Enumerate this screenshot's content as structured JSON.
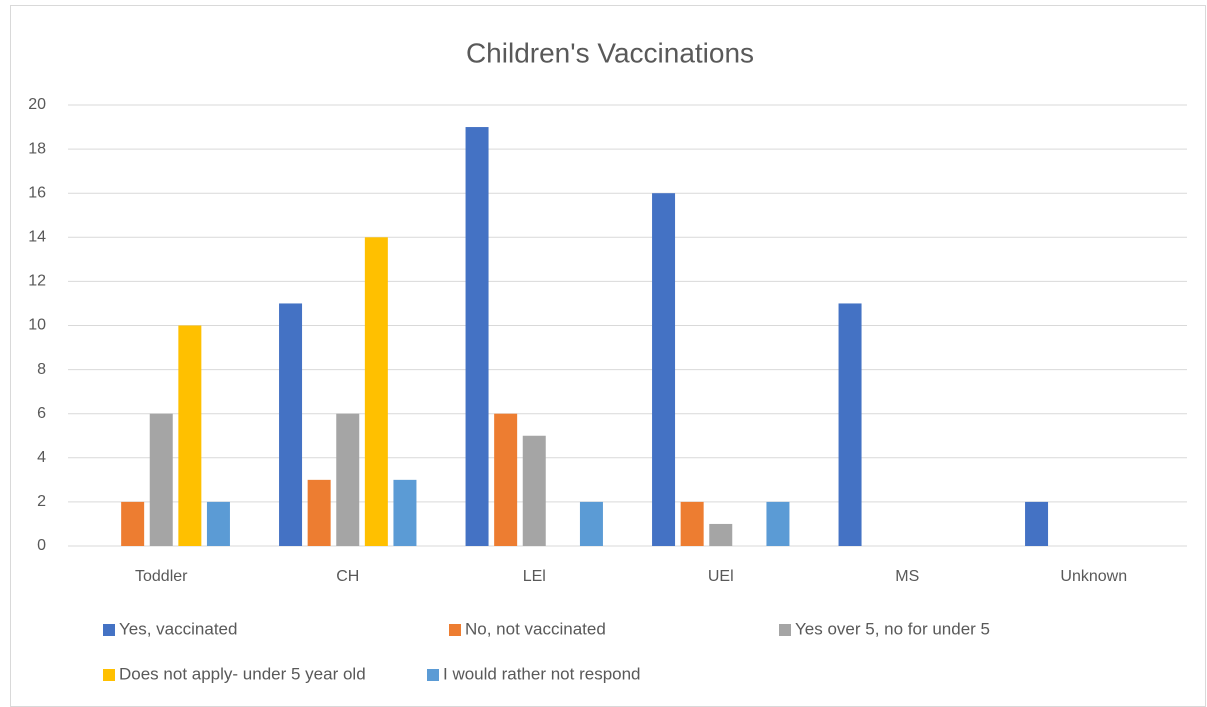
{
  "chart_data": {
    "type": "bar",
    "title": "Children's Vaccinations",
    "categories": [
      "Toddler",
      "CH",
      "LEl",
      "UEl",
      "MS",
      "Unknown"
    ],
    "series": [
      {
        "name": "Yes, vaccinated",
        "color": "#4472c4",
        "values": [
          0,
          11,
          19,
          16,
          11,
          2
        ]
      },
      {
        "name": "No, not vaccinated",
        "color": "#ed7d31",
        "values": [
          2,
          3,
          6,
          2,
          0,
          0
        ]
      },
      {
        "name": "Yes over 5, no for under 5",
        "color": "#a5a5a5",
        "values": [
          6,
          6,
          5,
          1,
          0,
          0
        ]
      },
      {
        "name": "Does not apply- under 5 year old",
        "color": "#ffc000",
        "values": [
          10,
          14,
          0,
          0,
          0,
          0
        ]
      },
      {
        "name": "I would rather not respond",
        "color": "#5b9bd5",
        "values": [
          2,
          3,
          2,
          2,
          0,
          0
        ]
      }
    ],
    "ylim": [
      0,
      20
    ],
    "yticks": [
      0,
      2,
      4,
      6,
      8,
      10,
      12,
      14,
      16,
      18,
      20
    ],
    "grid": true,
    "legend": "bottom"
  }
}
